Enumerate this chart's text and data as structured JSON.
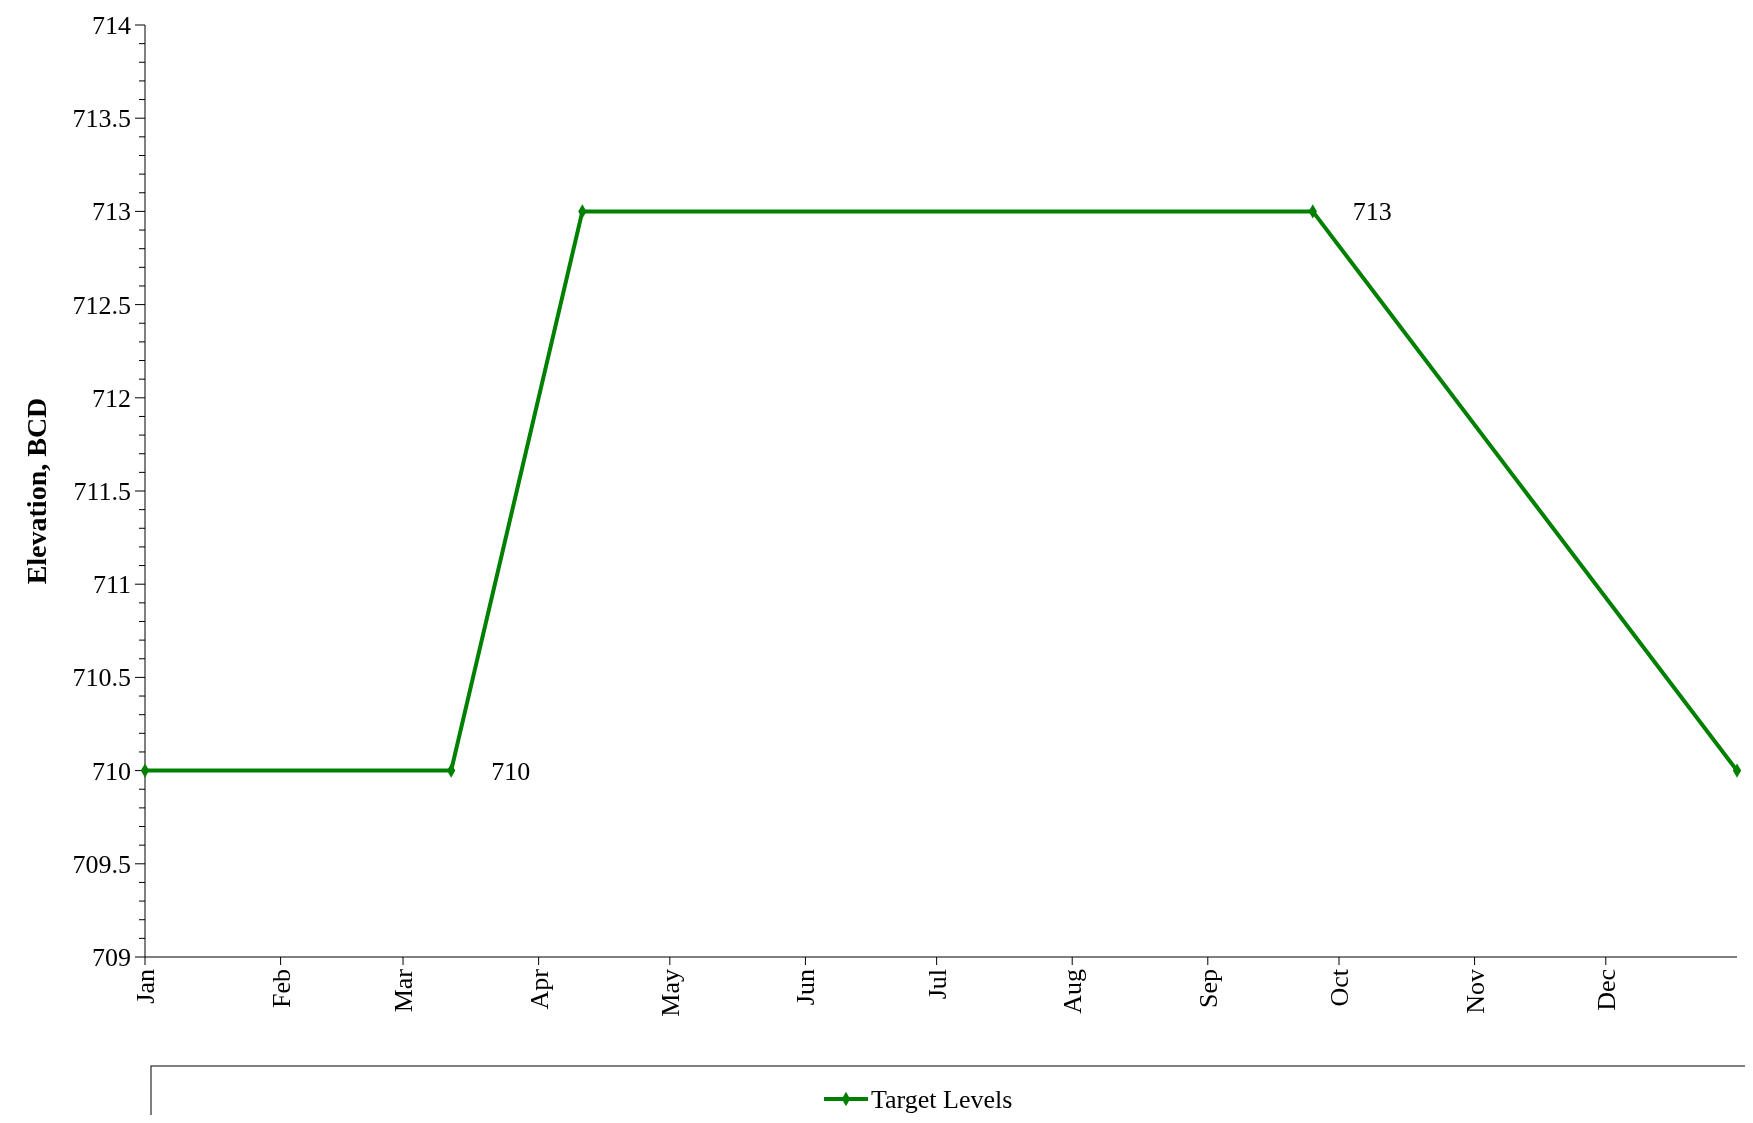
{
  "chart_data": {
    "type": "line",
    "ylabel": "Elevation, BCD",
    "x": [
      "--01-01",
      "--03-12",
      "--04-11",
      "--09-25",
      "--12-31"
    ],
    "series": [
      {
        "name": "Target Levels",
        "color": "#008000",
        "values": [
          710,
          710,
          713,
          713,
          710
        ],
        "value_labels": [
          null,
          "710",
          null,
          "713",
          null
        ]
      }
    ],
    "xlim": [
      "--01-01",
      "--12-31"
    ],
    "xticks": [
      {
        "value": "--01-01",
        "label": "Jan"
      },
      {
        "value": "--02-01",
        "label": "Feb"
      },
      {
        "value": "--03-01",
        "label": "Mar"
      },
      {
        "value": "--04-01",
        "label": "Apr"
      },
      {
        "value": "--05-01",
        "label": "May"
      },
      {
        "value": "--06-01",
        "label": "Jun"
      },
      {
        "value": "--07-01",
        "label": "Jul"
      },
      {
        "value": "--08-01",
        "label": "Aug"
      },
      {
        "value": "--09-01",
        "label": "Sep"
      },
      {
        "value": "--10-01",
        "label": "Oct"
      },
      {
        "value": "--11-01",
        "label": "Nov"
      },
      {
        "value": "--12-01",
        "label": "Dec"
      }
    ],
    "ylim": [
      709,
      714
    ],
    "yticks": [
      709,
      {
        "value": 709.1,
        "label": null
      },
      {
        "value": 709.2,
        "label": null
      },
      {
        "value": 709.3,
        "label": null
      },
      {
        "value": 709.4,
        "label": null
      },
      709.5,
      {
        "value": 709.6,
        "label": null
      },
      {
        "value": 709.7,
        "label": null
      },
      {
        "value": 709.8,
        "label": null
      },
      {
        "value": 709.9,
        "label": null
      },
      710,
      {
        "value": 710.1,
        "label": null
      },
      {
        "value": 710.2,
        "label": null
      },
      {
        "value": 710.3,
        "label": null
      },
      {
        "value": 710.4,
        "label": null
      },
      710.5,
      {
        "value": 710.6,
        "label": null
      },
      {
        "value": 710.7,
        "label": null
      },
      {
        "value": 710.8,
        "label": null
      },
      {
        "value": 710.9,
        "label": null
      },
      711,
      {
        "value": 711.1,
        "label": null
      },
      {
        "value": 711.2,
        "label": null
      },
      {
        "value": 711.3,
        "label": null
      },
      {
        "value": 711.4,
        "label": null
      },
      711.5,
      {
        "value": 711.6,
        "label": null
      },
      {
        "value": 711.7,
        "label": null
      },
      {
        "value": 711.8,
        "label": null
      },
      {
        "value": 711.9,
        "label": null
      },
      712,
      {
        "value": 712.1,
        "label": null
      },
      {
        "value": 712.2,
        "label": null
      },
      {
        "value": 712.3,
        "label": null
      },
      {
        "value": 712.4,
        "label": null
      },
      712.5,
      {
        "value": 712.6,
        "label": null
      },
      {
        "value": 712.7,
        "label": null
      },
      {
        "value": 712.8,
        "label": null
      },
      {
        "value": 712.9,
        "label": null
      },
      713,
      {
        "value": 713.1,
        "label": null
      },
      {
        "value": 713.2,
        "label": null
      },
      {
        "value": 713.3,
        "label": null
      },
      {
        "value": 713.4,
        "label": null
      },
      713.5,
      {
        "value": 713.6,
        "label": null
      },
      {
        "value": 713.7,
        "label": null
      },
      {
        "value": 713.8,
        "label": null
      },
      {
        "value": 713.9,
        "label": null
      },
      714
    ],
    "marker": "diamond",
    "legend": "bottom"
  }
}
